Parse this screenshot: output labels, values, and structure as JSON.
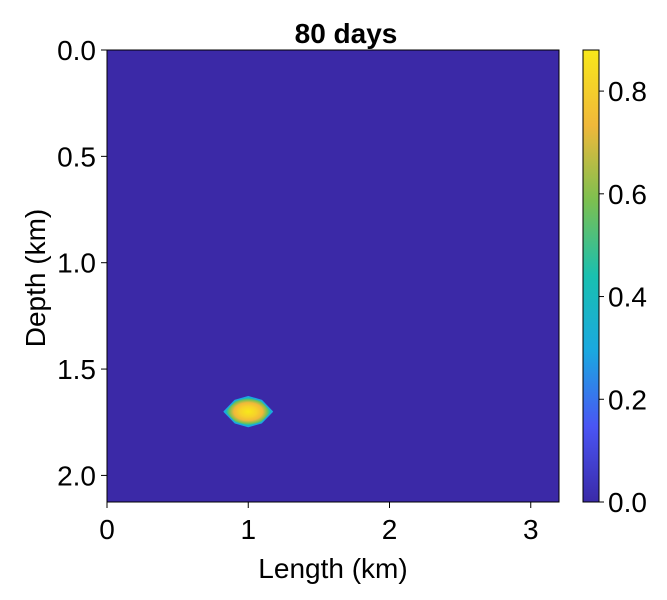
{
  "chart_data": {
    "type": "heatmap",
    "title": "80 days",
    "xlabel": "Length (km)",
    "ylabel": "Depth (km)",
    "xlim": [
      0,
      3.2
    ],
    "ylim": [
      0,
      2.125
    ],
    "y_inverted": true,
    "xticks": [
      0,
      1,
      2,
      3
    ],
    "xtick_labels": [
      "0",
      "1",
      "2",
      "3"
    ],
    "yticks": [
      0.0,
      0.5,
      1.0,
      1.5,
      2.0
    ],
    "ytick_labels": [
      "0.0",
      "0.5",
      "1.0",
      "1.5",
      "2.0"
    ],
    "colorbar": {
      "range": [
        0,
        0.88
      ],
      "ticks": [
        0.0,
        0.2,
        0.4,
        0.6,
        0.8
      ],
      "tick_labels": [
        "0.0",
        "0.2",
        "0.4",
        "0.6",
        "0.8"
      ],
      "colormap": [
        "#3a2aa8",
        "#4a55f4",
        "#1aa8e0",
        "#19c0b0",
        "#7cc050",
        "#f0b83a",
        "#f8e81a"
      ]
    },
    "background_value": 0.0,
    "background_color": "#3b29a7",
    "plume": {
      "center_x_km": 1.0,
      "center_y_km": 1.7,
      "half_width_km": 0.17,
      "half_height_km": 0.07,
      "peak_value": 0.85
    }
  }
}
